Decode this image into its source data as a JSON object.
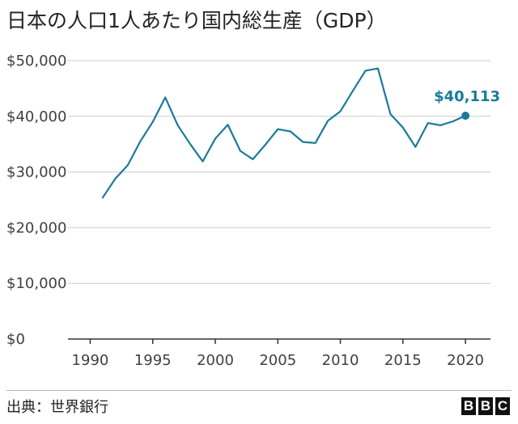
{
  "title": "日本の人口1人あたり国内総生産（GDP）",
  "source": "出典：世界銀行",
  "logo": {
    "letters": [
      "B",
      "B",
      "C"
    ]
  },
  "colors": {
    "line": "#1a7a99",
    "grid": "#cccccc",
    "axis": "#333333"
  },
  "chart_data": {
    "type": "line",
    "title": "日本の人口1人あたり国内総生産（GDP）",
    "xlabel": "",
    "ylabel": "",
    "xlim": [
      1989,
      2022
    ],
    "ylim": [
      0,
      50000
    ],
    "x_ticks": [
      1990,
      1995,
      2000,
      2005,
      2010,
      2015,
      2020
    ],
    "y_ticks": [
      {
        "value": 0,
        "label": "$0"
      },
      {
        "value": 10000,
        "label": "$10,000"
      },
      {
        "value": 20000,
        "label": "$20,000"
      },
      {
        "value": 30000,
        "label": "$30,000"
      },
      {
        "value": 40000,
        "label": "$40,000"
      },
      {
        "value": 50000,
        "label": "$50,000"
      }
    ],
    "grid": true,
    "series": [
      {
        "name": "",
        "x": [
          1991,
          1992,
          1993,
          1994,
          1995,
          1996,
          1997,
          1998,
          1999,
          2000,
          2001,
          2002,
          2003,
          2004,
          2005,
          2006,
          2007,
          2008,
          2009,
          2010,
          2011,
          2012,
          2013,
          2014,
          2015,
          2016,
          2017,
          2018,
          2019,
          2020
        ],
        "values": [
          25400,
          28800,
          31200,
          35500,
          39000,
          43400,
          38400,
          35000,
          31900,
          36000,
          38500,
          33800,
          32300,
          34900,
          37700,
          37300,
          35400,
          35200,
          39200,
          40900,
          44600,
          48200,
          48600,
          40400,
          38000,
          34500,
          38800,
          38400,
          39100,
          40113
        ]
      }
    ],
    "annotation": {
      "x": 2020,
      "value": 40113,
      "label": "$40,113"
    }
  }
}
